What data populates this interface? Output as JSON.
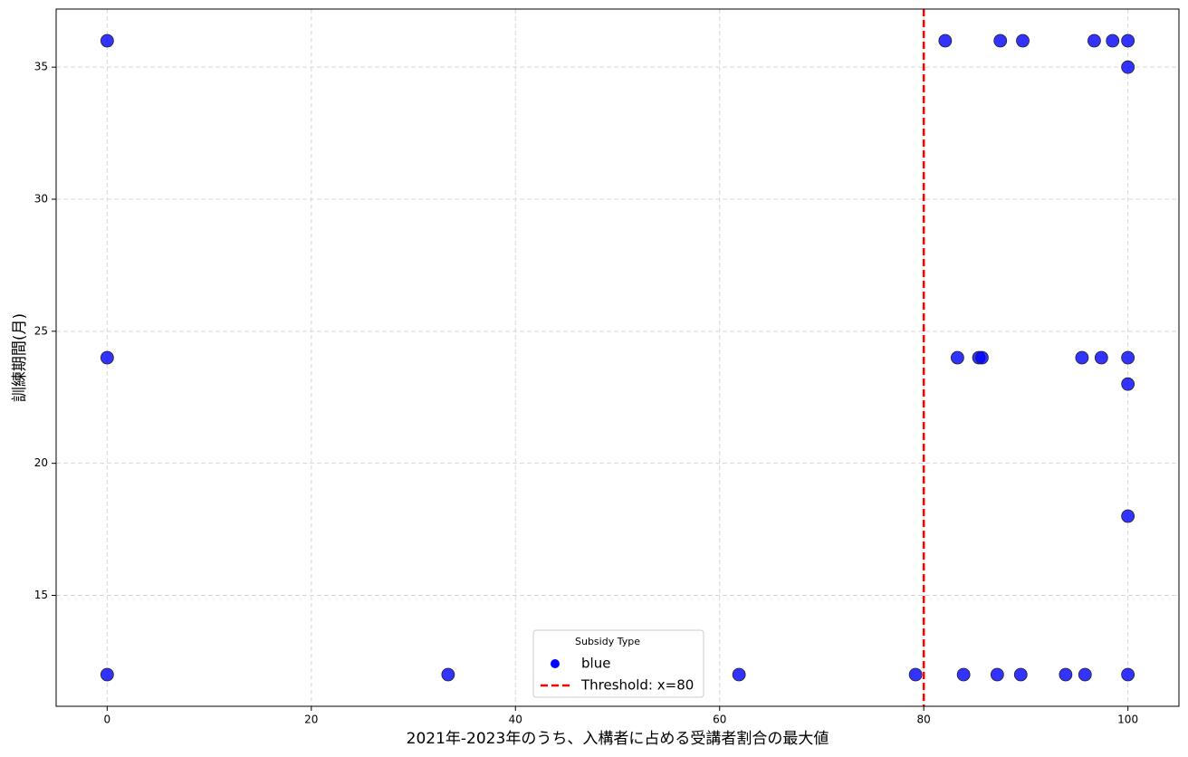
{
  "chart_data": {
    "type": "scatter",
    "xlabel": "2021年-2023年のうち、入構者に占める受講者割合の最大値",
    "ylabel": "訓練期間(月)",
    "series": [
      {
        "name": "blue",
        "color": "blue",
        "x": [
          0,
          82.1,
          87.5,
          89.7,
          96.7,
          98.5,
          100,
          100,
          0,
          83.3,
          85.4,
          85.7,
          95.5,
          97.4,
          100,
          100,
          100,
          0,
          33.4,
          61.9,
          79.2,
          83.9,
          87.2,
          89.5,
          93.9,
          95.8,
          100
        ],
        "values": [
          36,
          36,
          36,
          36,
          36,
          36,
          36,
          35,
          24,
          24,
          24,
          24,
          24,
          24,
          24,
          23,
          18,
          12,
          12,
          12,
          12,
          12,
          12,
          12,
          12,
          12,
          12
        ]
      }
    ],
    "threshold": {
      "value": 80,
      "label": "Threshold: x=80",
      "color": "red"
    },
    "legend_title": "Subsidy Type",
    "legend": "lower center",
    "xlim": [
      -5,
      105
    ],
    "ylim": [
      10.8,
      37.2
    ],
    "xticks": [
      0,
      20,
      40,
      60,
      80,
      100
    ],
    "yticks": [
      15,
      20,
      25,
      30,
      35
    ],
    "grid": true
  }
}
